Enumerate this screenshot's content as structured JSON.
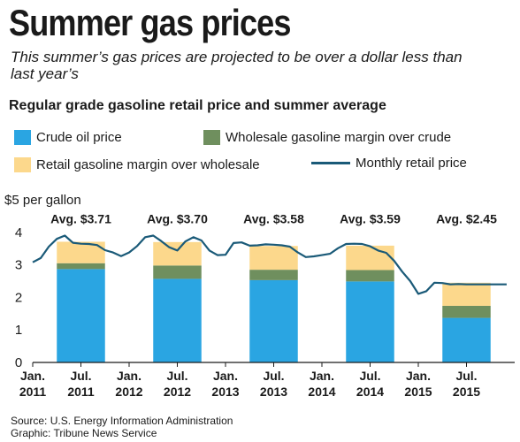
{
  "header": {
    "title": "Summer gas prices",
    "subtitle": "This summer’s gas prices are projected to be over a dollar less than last year’s",
    "chart_heading": "Regular grade gasoline retail price and summer average"
  },
  "legend": {
    "crude": "Crude oil price",
    "wholesale": "Wholesale gasoline margin over crude",
    "retail": "Retail gasoline margin over wholesale",
    "monthly": "Monthly retail price"
  },
  "colors": {
    "crude": "#2aa5e2",
    "wholesale": "#6f8f5e",
    "retail": "#fcd88c",
    "line": "#1a5a78"
  },
  "footer": {
    "source": "Source: U.S. Energy Information Administration",
    "graphic": "Graphic: Tribune News Service"
  },
  "chart_data": {
    "type": "bar",
    "y_unit_label": "$5 per gallon",
    "ylim": [
      0,
      5
    ],
    "y_ticks": [
      "0",
      "1",
      "2",
      "3",
      "4"
    ],
    "x_ticks": [
      {
        "month": "2011-01",
        "line1": "Jan.",
        "line2": "2011"
      },
      {
        "month": "2011-07",
        "line1": "Jul.",
        "line2": "2011"
      },
      {
        "month": "2012-01",
        "line1": "Jan.",
        "line2": "2012"
      },
      {
        "month": "2012-07",
        "line1": "Jul.",
        "line2": "2012"
      },
      {
        "month": "2013-01",
        "line1": "Jan.",
        "line2": "2013"
      },
      {
        "month": "2013-07",
        "line1": "Jul.",
        "line2": "2013"
      },
      {
        "month": "2014-01",
        "line1": "Jan.",
        "line2": "2014"
      },
      {
        "month": "2014-07",
        "line1": "Jul.",
        "line2": "2014"
      },
      {
        "month": "2015-01",
        "line1": "Jan.",
        "line2": "2015"
      },
      {
        "month": "2015-07",
        "line1": "Jul.",
        "line2": "2015"
      }
    ],
    "x_range": [
      "2011-01",
      "2015-12"
    ],
    "summer_averages": [
      {
        "year": "2011",
        "start": "2011-04",
        "end": "2011-09",
        "crude": 2.87,
        "wholesale": 0.18,
        "retail": 0.66,
        "label": "Avg. $3.71"
      },
      {
        "year": "2012",
        "start": "2012-04",
        "end": "2012-09",
        "crude": 2.57,
        "wholesale": 0.41,
        "retail": 0.72,
        "label": "Avg. $3.70"
      },
      {
        "year": "2013",
        "start": "2013-04",
        "end": "2013-09",
        "crude": 2.53,
        "wholesale": 0.32,
        "retail": 0.73,
        "label": "Avg. $3.58"
      },
      {
        "year": "2014",
        "start": "2014-04",
        "end": "2014-09",
        "crude": 2.49,
        "wholesale": 0.35,
        "retail": 0.75,
        "label": "Avg. $3.59"
      },
      {
        "year": "2015",
        "start": "2015-04",
        "end": "2015-09",
        "crude": 1.37,
        "wholesale": 0.37,
        "retail": 0.71,
        "label": "Avg. $2.45"
      }
    ],
    "monthly_retail_price": [
      {
        "month": "2011-01",
        "price": 3.08
      },
      {
        "month": "2011-02",
        "price": 3.21
      },
      {
        "month": "2011-03",
        "price": 3.56
      },
      {
        "month": "2011-04",
        "price": 3.8
      },
      {
        "month": "2011-05",
        "price": 3.9
      },
      {
        "month": "2011-06",
        "price": 3.68
      },
      {
        "month": "2011-07",
        "price": 3.65
      },
      {
        "month": "2011-08",
        "price": 3.64
      },
      {
        "month": "2011-09",
        "price": 3.61
      },
      {
        "month": "2011-10",
        "price": 3.45
      },
      {
        "month": "2011-11",
        "price": 3.38
      },
      {
        "month": "2011-12",
        "price": 3.27
      },
      {
        "month": "2012-01",
        "price": 3.38
      },
      {
        "month": "2012-02",
        "price": 3.58
      },
      {
        "month": "2012-03",
        "price": 3.85
      },
      {
        "month": "2012-04",
        "price": 3.9
      },
      {
        "month": "2012-05",
        "price": 3.73
      },
      {
        "month": "2012-06",
        "price": 3.54
      },
      {
        "month": "2012-07",
        "price": 3.44
      },
      {
        "month": "2012-08",
        "price": 3.72
      },
      {
        "month": "2012-09",
        "price": 3.85
      },
      {
        "month": "2012-10",
        "price": 3.75
      },
      {
        "month": "2012-11",
        "price": 3.44
      },
      {
        "month": "2012-12",
        "price": 3.3
      },
      {
        "month": "2013-01",
        "price": 3.31
      },
      {
        "month": "2013-02",
        "price": 3.67
      },
      {
        "month": "2013-03",
        "price": 3.69
      },
      {
        "month": "2013-04",
        "price": 3.59
      },
      {
        "month": "2013-05",
        "price": 3.6
      },
      {
        "month": "2013-06",
        "price": 3.63
      },
      {
        "month": "2013-07",
        "price": 3.62
      },
      {
        "month": "2013-08",
        "price": 3.6
      },
      {
        "month": "2013-09",
        "price": 3.56
      },
      {
        "month": "2013-10",
        "price": 3.38
      },
      {
        "month": "2013-11",
        "price": 3.24
      },
      {
        "month": "2013-12",
        "price": 3.26
      },
      {
        "month": "2014-01",
        "price": 3.3
      },
      {
        "month": "2014-02",
        "price": 3.34
      },
      {
        "month": "2014-03",
        "price": 3.51
      },
      {
        "month": "2014-04",
        "price": 3.64
      },
      {
        "month": "2014-05",
        "price": 3.65
      },
      {
        "month": "2014-06",
        "price": 3.64
      },
      {
        "month": "2014-07",
        "price": 3.57
      },
      {
        "month": "2014-08",
        "price": 3.44
      },
      {
        "month": "2014-09",
        "price": 3.37
      },
      {
        "month": "2014-10",
        "price": 3.12
      },
      {
        "month": "2014-11",
        "price": 2.79
      },
      {
        "month": "2014-12",
        "price": 2.5
      },
      {
        "month": "2015-01",
        "price": 2.11
      },
      {
        "month": "2015-02",
        "price": 2.19
      },
      {
        "month": "2015-03",
        "price": 2.45
      },
      {
        "month": "2015-04",
        "price": 2.44
      },
      {
        "month": "2015-05",
        "price": 2.4
      },
      {
        "month": "2015-06",
        "price": 2.41
      },
      {
        "month": "2015-07",
        "price": 2.4
      },
      {
        "month": "2015-08",
        "price": 2.4
      },
      {
        "month": "2015-09",
        "price": 2.4
      },
      {
        "month": "2015-10",
        "price": 2.4
      },
      {
        "month": "2015-11",
        "price": 2.4
      },
      {
        "month": "2015-12",
        "price": 2.4
      }
    ]
  }
}
